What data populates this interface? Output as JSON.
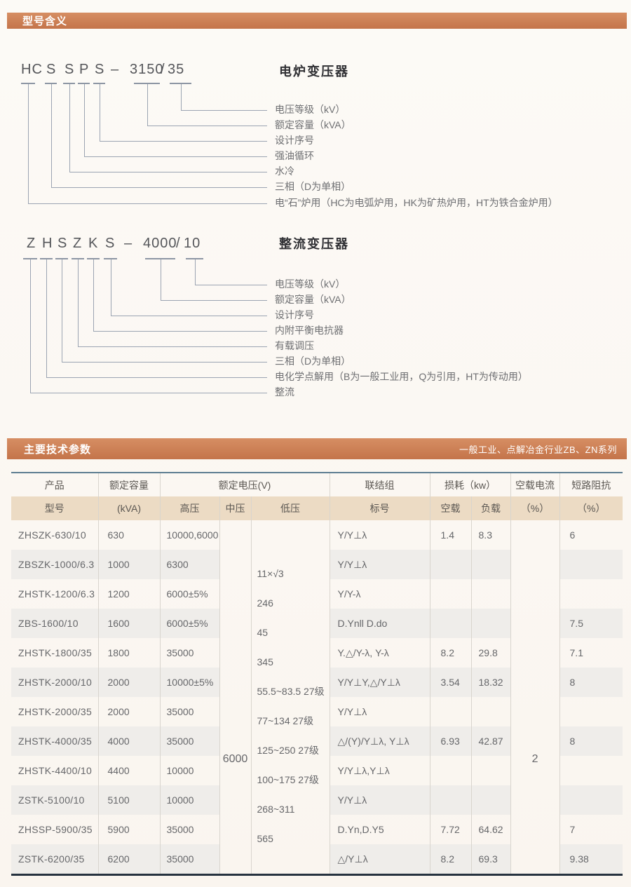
{
  "section_model": {
    "bar_title": "型号含义",
    "bar_color": "#c97a4f",
    "diagrams": [
      {
        "title": "电炉变压器",
        "code_parts": [
          "HC",
          "S",
          "S",
          "P",
          "S",
          "–",
          "3150",
          "/",
          "35"
        ],
        "labels_top_down": [
          "电压等级（kV）",
          "额定容量（kVA）",
          "设计序号",
          "强油循环",
          "水冷",
          "三相（D为单相）",
          "电“石”炉用（HC为电弧炉用，HK为矿热炉用，HT为铁合金炉用）"
        ]
      },
      {
        "title": "整流变压器",
        "code_parts": [
          "Z",
          "H",
          "S",
          "Z",
          "K",
          "S",
          "–",
          "4000",
          "/",
          "10"
        ],
        "labels_top_down": [
          "电压等级（kV）",
          "额定容量（kVA）",
          "设计序号",
          "内附平衡电抗器",
          "有载调压",
          "三相（D为单相）",
          "电化学点解用（B为一般工业用，Q为引用，HT为传动用）",
          "整流"
        ]
      }
    ]
  },
  "section_params": {
    "bar_title": "主要技术参数",
    "bar_subtitle": "一般工业、点解冶金行业ZB、ZN系列",
    "table": {
      "header_row1": {
        "product": "产品",
        "capacity": "额定容量",
        "voltage": "额定电压(V)",
        "connection": "联结组",
        "loss": "损耗（kw）",
        "no_load_current": "空载电流",
        "impedance": "短路阻抗"
      },
      "header_row2": {
        "model": "型号",
        "kva": "(kVA)",
        "hv": "高压",
        "mv": "中压",
        "lv": "低压",
        "label": "标号",
        "no_load": "空载",
        "on_load": "负载",
        "percent1": "（%）",
        "percent2": "（%）"
      },
      "merged_mv": "6000",
      "merged_no_load_current": "2",
      "merged_lv_lines": [
        "11×√3",
        "246",
        "45",
        "345",
        "55.5~83.5 27级",
        "77~134 27级",
        "125~250 27级",
        "100~175 27级",
        "268~311",
        "565"
      ],
      "rows": [
        {
          "model": "ZHSZK-630/10",
          "kva": "630",
          "hv": "10000,6000",
          "conn": "Y/Y⊥λ",
          "p0": "1.4",
          "pk": "8.3",
          "uk": "6"
        },
        {
          "model": "ZBSZK-1000/6.3",
          "kva": "1000",
          "hv": "6300",
          "conn": "Y/Y⊥λ",
          "p0": "",
          "pk": "",
          "uk": ""
        },
        {
          "model": "ZHSTK-1200/6.3",
          "kva": "1200",
          "hv": "6000±5%",
          "conn": "Y/Y-λ",
          "p0": "",
          "pk": "",
          "uk": ""
        },
        {
          "model": "ZBS-1600/10",
          "kva": "1600",
          "hv": "6000±5%",
          "conn": "D.Ynll D.do",
          "p0": "",
          "pk": "",
          "uk": "7.5"
        },
        {
          "model": "ZHSTK-1800/35",
          "kva": "1800",
          "hv": "35000",
          "conn": "Y.△/Y-λ, Y-λ",
          "p0": "8.2",
          "pk": "29.8",
          "uk": "7.1"
        },
        {
          "model": "ZHSTK-2000/10",
          "kva": "2000",
          "hv": "10000±5%",
          "conn": "Y/Y⊥Y,△/Y⊥λ",
          "p0": "3.54",
          "pk": "18.32",
          "uk": "8"
        },
        {
          "model": "ZHSTK-2000/35",
          "kva": "2000",
          "hv": "35000",
          "conn": "Y/Y⊥λ",
          "p0": "",
          "pk": "",
          "uk": ""
        },
        {
          "model": "ZHSTK-4000/35",
          "kva": "4000",
          "hv": "35000",
          "conn": "△/(Y)/Y⊥λ, Y⊥λ",
          "p0": "6.93",
          "pk": "42.87",
          "uk": "8"
        },
        {
          "model": "ZHSTK-4400/10",
          "kva": "4400",
          "hv": "10000",
          "conn": "Y/Y⊥λ,Y⊥λ",
          "p0": "",
          "pk": "",
          "uk": ""
        },
        {
          "model": "ZSTK-5100/10",
          "kva": "5100",
          "hv": "10000",
          "conn": "Y/Y⊥λ",
          "p0": "",
          "pk": "",
          "uk": ""
        },
        {
          "model": "ZHSSP-5900/35",
          "kva": "5900",
          "hv": "35000",
          "conn": "D.Yn,D.Y5",
          "p0": "7.72",
          "pk": "64.62",
          "uk": "7"
        },
        {
          "model": "ZSTK-6200/35",
          "kva": "6200",
          "hv": "35000",
          "conn": "△/Y⊥λ",
          "p0": "8.2",
          "pk": "69.3",
          "uk": "9.38"
        }
      ]
    }
  }
}
